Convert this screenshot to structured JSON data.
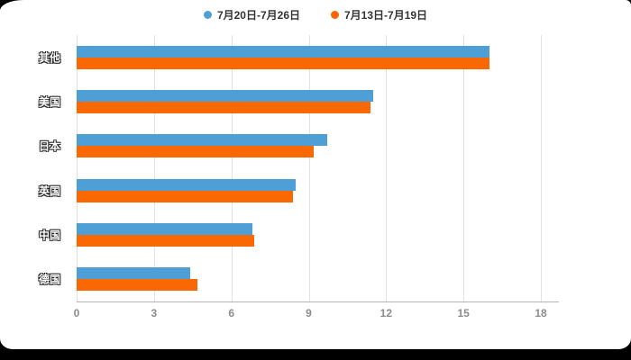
{
  "page": {
    "background_color": "#000000",
    "panel_color": "#ffffff"
  },
  "chart_data": {
    "type": "bar",
    "orientation": "horizontal",
    "title": "",
    "xlabel": "",
    "ylabel": "",
    "categories": [
      "其他",
      "美国",
      "日本",
      "英国",
      "中国",
      "德国"
    ],
    "series": [
      {
        "name": "7月20日-7月26日",
        "color": "#4D9FD6",
        "values": [
          16.0,
          11.5,
          9.7,
          8.5,
          6.8,
          4.4
        ]
      },
      {
        "name": "7月13日-7月19日",
        "color": "#F96803",
        "values": [
          16.0,
          11.4,
          9.2,
          8.4,
          6.9,
          4.7
        ]
      }
    ],
    "xlim": [
      0,
      18
    ],
    "x_ticks": [
      0,
      3,
      6,
      9,
      12,
      15,
      18
    ],
    "grid": true,
    "legend_position": "top"
  }
}
